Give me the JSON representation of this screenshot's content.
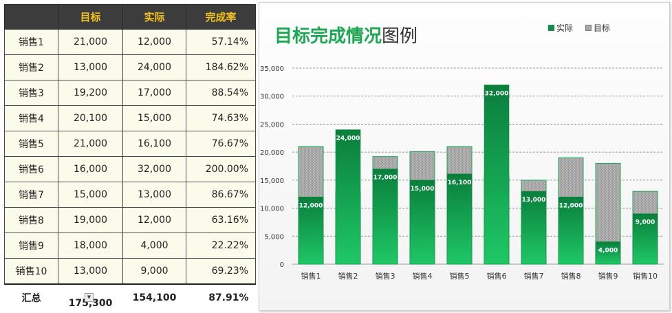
{
  "table": {
    "headers": [
      "",
      "目标",
      "实际",
      "完成率"
    ],
    "rows": [
      [
        "销售1",
        "21,000",
        "12,000",
        "57.14%"
      ],
      [
        "销售2",
        "13,000",
        "24,000",
        "184.62%"
      ],
      [
        "销售3",
        "19,200",
        "17,000",
        "88.54%"
      ],
      [
        "销售4",
        "20,100",
        "15,000",
        "74.63%"
      ],
      [
        "销售5",
        "21,000",
        "16,100",
        "76.67%"
      ],
      [
        "销售6",
        "16,000",
        "32,000",
        "200.00%"
      ],
      [
        "销售7",
        "15,000",
        "13,000",
        "86.67%"
      ],
      [
        "销售8",
        "19,000",
        "12,000",
        "63.16%"
      ],
      [
        "销售9",
        "18,000",
        "4,000",
        "22.22%"
      ],
      [
        "销售10",
        "13,000",
        "9,000",
        "69.23%"
      ]
    ],
    "total": [
      "汇总",
      "175,300",
      "154,100",
      "87.91%"
    ]
  },
  "chart_title_main": "目标完成情况",
  "chart_title_suffix": "图例",
  "chart_data": {
    "type": "bar",
    "title": "目标完成情况图例",
    "categories": [
      "销售1",
      "销售2",
      "销售3",
      "销售4",
      "销售5",
      "销售6",
      "销售7",
      "销售8",
      "销售9",
      "销售10"
    ],
    "series": [
      {
        "name": "实际",
        "values": [
          12000,
          24000,
          17000,
          15000,
          16100,
          32000,
          13000,
          12000,
          4000,
          9000
        ]
      },
      {
        "name": "目标",
        "values": [
          21000,
          13000,
          19200,
          20100,
          21000,
          16000,
          15000,
          19000,
          18000,
          13000
        ]
      }
    ],
    "data_labels": [
      "12,000",
      "24,000",
      "17,000",
      "15,000",
      "16,100",
      "32,000",
      "13,000",
      "12,000",
      "4,000",
      "9,000"
    ],
    "yticks": [
      0,
      5000,
      10000,
      15000,
      20000,
      25000,
      30000,
      35000
    ],
    "ytick_labels": [
      "0",
      "5,000",
      "10,000",
      "15,000",
      "20,000",
      "25,000",
      "30,000",
      "35,000"
    ],
    "ylim": [
      0,
      35000
    ],
    "grid": true,
    "legend_position": "top-right",
    "xlabel": "",
    "ylabel": "",
    "colors": {
      "actual": "#0d8f47",
      "target": "#a8a8a8"
    }
  }
}
